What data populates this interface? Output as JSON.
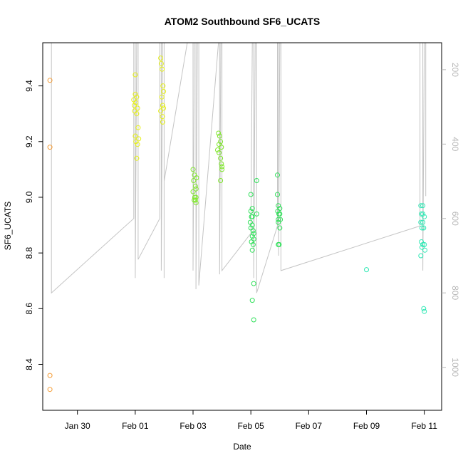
{
  "chart_data": {
    "type": "scatter",
    "title": "ATOM2 Southbound SF6_UCATS",
    "xlabel": "Date",
    "ylabel": "SF6_UCATS",
    "x_unit": "days (0 = Jan 30)",
    "xlim": [
      -1.2,
      12.6
    ],
    "ylim": [
      8.235,
      9.555
    ],
    "x_ticks": [
      {
        "value": 0,
        "label": "Jan 30"
      },
      {
        "value": 2,
        "label": "Feb 01"
      },
      {
        "value": 4,
        "label": "Feb 03"
      },
      {
        "value": 6,
        "label": "Feb 05"
      },
      {
        "value": 8,
        "label": "Feb 07"
      },
      {
        "value": 10,
        "label": "Feb 09"
      },
      {
        "value": 12,
        "label": "Feb 11"
      }
    ],
    "y_ticks": [
      8.4,
      8.6,
      8.8,
      9.0,
      9.2,
      9.4
    ],
    "y2_ticks": [
      200,
      400,
      600,
      800,
      1000
    ],
    "y2lim": [
      1115.6,
      127.5
    ],
    "grid": false,
    "series": [
      {
        "color": "#f59c35",
        "points": [
          [
            -0.95,
            9.42
          ],
          [
            -0.95,
            9.18
          ],
          [
            -0.95,
            8.36
          ],
          [
            -0.95,
            8.31
          ]
        ]
      },
      {
        "color": "#e6f016",
        "points": [
          [
            2.0,
            9.44
          ],
          [
            2.0,
            9.37
          ],
          [
            2.05,
            9.36
          ],
          [
            1.95,
            9.35
          ],
          [
            2.02,
            9.34
          ],
          [
            1.97,
            9.33
          ],
          [
            2.08,
            9.32
          ],
          [
            1.98,
            9.31
          ],
          [
            2.05,
            9.3
          ],
          [
            2.1,
            9.25
          ],
          [
            2.0,
            9.22
          ],
          [
            2.12,
            9.21
          ],
          [
            2.02,
            9.2
          ],
          [
            2.08,
            9.19
          ],
          [
            2.05,
            9.14
          ],
          [
            2.88,
            9.5
          ],
          [
            2.9,
            9.48
          ],
          [
            2.93,
            9.46
          ],
          [
            2.96,
            9.4
          ],
          [
            2.98,
            9.38
          ],
          [
            2.92,
            9.36
          ],
          [
            2.95,
            9.33
          ],
          [
            2.98,
            9.32
          ],
          [
            2.88,
            9.31
          ],
          [
            2.94,
            9.29
          ],
          [
            2.95,
            9.27
          ]
        ]
      },
      {
        "color": "#7ee62a",
        "points": [
          [
            4.0,
            9.1
          ],
          [
            4.05,
            9.08
          ],
          [
            4.12,
            9.07
          ],
          [
            4.02,
            9.06
          ],
          [
            4.08,
            9.04
          ],
          [
            4.1,
            9.03
          ],
          [
            4.0,
            9.02
          ],
          [
            4.06,
            9.0
          ],
          [
            4.1,
            9.0
          ],
          [
            4.08,
            8.99
          ],
          [
            4.04,
            8.99
          ],
          [
            4.1,
            8.98
          ],
          [
            4.88,
            9.23
          ],
          [
            4.92,
            9.22
          ],
          [
            4.95,
            9.2
          ],
          [
            4.9,
            9.19
          ],
          [
            4.98,
            9.18
          ],
          [
            4.85,
            9.17
          ],
          [
            4.9,
            9.16
          ],
          [
            4.95,
            9.14
          ],
          [
            4.98,
            9.12
          ],
          [
            5.0,
            9.11
          ],
          [
            5.0,
            9.1
          ],
          [
            4.95,
            9.06
          ]
        ]
      },
      {
        "color": "#30e05a",
        "points": [
          [
            6.0,
            9.01
          ],
          [
            6.05,
            8.96
          ],
          [
            6.0,
            8.95
          ],
          [
            6.05,
            8.93
          ],
          [
            6.02,
            8.93
          ],
          [
            5.98,
            8.91
          ],
          [
            6.05,
            8.9
          ],
          [
            6.0,
            8.89
          ],
          [
            6.08,
            8.88
          ],
          [
            6.1,
            8.87
          ],
          [
            6.05,
            8.86
          ],
          [
            6.1,
            8.85
          ],
          [
            6.02,
            8.84
          ],
          [
            6.08,
            8.83
          ],
          [
            6.05,
            8.81
          ],
          [
            6.1,
            8.69
          ],
          [
            6.05,
            8.63
          ],
          [
            6.1,
            8.56
          ],
          [
            6.2,
            9.06
          ],
          [
            6.2,
            8.94
          ],
          [
            6.92,
            9.08
          ],
          [
            6.92,
            9.01
          ],
          [
            6.95,
            8.97
          ],
          [
            7.0,
            8.96
          ],
          [
            6.93,
            8.95
          ],
          [
            6.97,
            8.94
          ],
          [
            7.0,
            8.94
          ],
          [
            6.95,
            8.92
          ],
          [
            7.02,
            8.92
          ],
          [
            6.95,
            8.91
          ],
          [
            7.0,
            8.89
          ],
          [
            6.98,
            8.83
          ],
          [
            6.95,
            8.83
          ]
        ]
      },
      {
        "color": "#2ee8b4",
        "points": [
          [
            10.0,
            8.74
          ],
          [
            11.88,
            8.97
          ],
          [
            11.95,
            8.97
          ],
          [
            11.9,
            8.94
          ],
          [
            11.95,
            8.94
          ],
          [
            12.0,
            8.93
          ],
          [
            11.88,
            8.91
          ],
          [
            11.95,
            8.91
          ],
          [
            11.92,
            8.89
          ],
          [
            11.98,
            8.89
          ],
          [
            11.9,
            8.84
          ],
          [
            11.95,
            8.83
          ],
          [
            12.0,
            8.83
          ],
          [
            11.92,
            8.82
          ],
          [
            12.02,
            8.81
          ],
          [
            11.88,
            8.79
          ],
          [
            11.98,
            8.6
          ],
          [
            12.0,
            8.59
          ]
        ]
      }
    ],
    "altitude_trace": {
      "color": "#c4c4c4",
      "axis": "right",
      "points": [
        [
          -1.0,
          127
        ],
        [
          -0.9,
          127
        ],
        [
          -0.9,
          800
        ],
        [
          1.95,
          600
        ],
        [
          1.95,
          127
        ],
        [
          2.0,
          127
        ],
        [
          2.0,
          760
        ],
        [
          2.05,
          127
        ],
        [
          2.1,
          127
        ],
        [
          2.1,
          710
        ],
        [
          2.85,
          600
        ],
        [
          2.85,
          127
        ],
        [
          2.9,
          127
        ],
        [
          2.9,
          740
        ],
        [
          2.95,
          127
        ],
        [
          3.0,
          127
        ],
        [
          3.0,
          760
        ],
        [
          3.0,
          500
        ],
        [
          3.8,
          127
        ],
        [
          4.0,
          127
        ],
        [
          4.0,
          740
        ],
        [
          4.05,
          127
        ],
        [
          4.1,
          127
        ],
        [
          4.1,
          790
        ],
        [
          4.15,
          127
        ],
        [
          4.2,
          127
        ],
        [
          4.2,
          780
        ],
        [
          4.88,
          127
        ],
        [
          4.92,
          127
        ],
        [
          4.92,
          750
        ],
        [
          4.96,
          127
        ],
        [
          5.0,
          127
        ],
        [
          5.0,
          740
        ],
        [
          6.0,
          640
        ],
        [
          6.05,
          127
        ],
        [
          6.1,
          127
        ],
        [
          6.1,
          760
        ],
        [
          6.15,
          127
        ],
        [
          6.2,
          127
        ],
        [
          6.2,
          800
        ],
        [
          6.92,
          620
        ],
        [
          6.92,
          127
        ],
        [
          6.96,
          127
        ],
        [
          6.96,
          700
        ],
        [
          7.0,
          127
        ],
        [
          7.04,
          127
        ],
        [
          7.04,
          740
        ],
        [
          11.85,
          620
        ],
        [
          11.85,
          127
        ],
        [
          11.95,
          127
        ],
        [
          11.95,
          740
        ],
        [
          12.0,
          127
        ],
        [
          12.05,
          127
        ],
        [
          12.05,
          540
        ]
      ]
    }
  }
}
